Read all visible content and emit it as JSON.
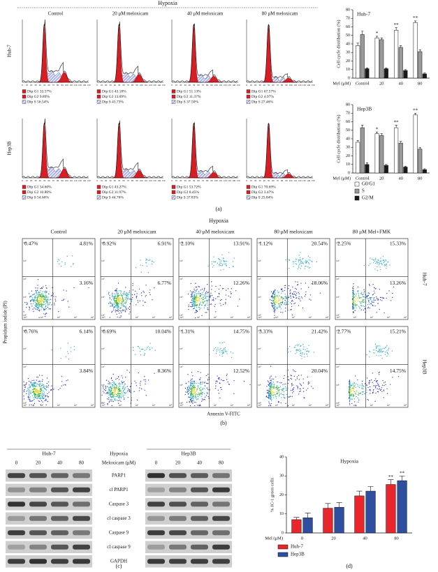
{
  "panel_a": {
    "title": "Hypoxia",
    "conditions": [
      "Control",
      "20 μM meloxicam",
      "40 μM meloxicam",
      "80 μM meloxicam"
    ],
    "cell_lines": [
      "Huh-7",
      "Hep3B"
    ],
    "stats": [
      [
        [
          "Dip G1 33.57%",
          "Dip G2 9.89%",
          "Dip S 56.54%"
        ],
        [
          "Dip G1 43.18%",
          "Dip G2 13.09%",
          "Dip S 43.73%"
        ],
        [
          "Dip G1 51.13%",
          "Dip G2 11.37%",
          "Dip S 37.50%"
        ],
        [
          "Dip G1 67.57%",
          "Dip G2 4.97%",
          "Dip S 27.46%"
        ]
      ],
      [
        [
          "Dip G1 34.60%",
          "Dip G2 10.80%",
          "Dip S 54.60%"
        ],
        [
          "Dip G1 43.27%",
          "Dip G2 11.97%",
          "Dip S 44.76%"
        ],
        [
          "Dip G1 53.72%",
          "Dip G2 8.45%",
          "Dip S 37.83%"
        ],
        [
          "Dip G1 70.69%",
          "Dip G2 3.47%",
          "Dip S 25.84%"
        ]
      ]
    ],
    "hist_ticks": [
      "0",
      "10",
      "20",
      "30",
      "40",
      "50",
      "60",
      "70",
      "80",
      "90",
      "100",
      "110",
      "120",
      "130",
      "140",
      "150"
    ],
    "label": "(a)"
  },
  "panel_b": {
    "title": "Hypoxia",
    "conditions": [
      "Control",
      "20 μM meloxicam",
      "40 μM meloxicam",
      "80 μM meloxicam",
      "80 μM Mel+FMK"
    ],
    "cell_lines": [
      "Huh-7",
      "Hep3B"
    ],
    "quadrants": [
      [
        [
          "0.47%",
          "4.81%",
          "3.16%"
        ],
        [
          "0.92%",
          "6.91%",
          "6.77%"
        ],
        [
          "2.10%",
          "13.91%",
          "12.26%"
        ],
        [
          "1.12%",
          "20.54%",
          "18.06%"
        ],
        [
          "2.25%",
          "15.33%",
          "13.26%"
        ]
      ],
      [
        [
          "0.76%",
          "6.14%",
          "3.84%"
        ],
        [
          "0.69%",
          "10.04%",
          "8.36%"
        ],
        [
          "1.31%",
          "14.75%",
          "12.52%"
        ],
        [
          "3.33%",
          "21.42%",
          "20.04%"
        ],
        [
          "2.77%",
          "15.21%",
          "14.75%"
        ]
      ]
    ],
    "ticks": [
      "10⁰",
      "10¹",
      "10²",
      "10³",
      "10⁴"
    ],
    "y_label": "Propidium iodide (PI)",
    "x_label": "Annexin V-FITC",
    "label": "(b)"
  },
  "panel_c": {
    "cell_lines": [
      "Huh-7",
      "Hep3B"
    ],
    "condition": "Hypoxia",
    "dose_label": "Meloxicam (μM)",
    "lanes": [
      "0",
      "20",
      "40",
      "80"
    ],
    "proteins": [
      "PARP1",
      "cl PARP1",
      "Caspase 3",
      "cl caspase 3",
      "Caspase 9",
      "cl caspase 9",
      "GAPDH"
    ],
    "label": "(c)"
  },
  "panel_d_label": "(d)",
  "chart_data": [
    {
      "type": "bar",
      "title": "Huh-7",
      "y_label": "Cell cycle distribution (%)",
      "x_label": "Mel (μM)",
      "categories": [
        "Control",
        "20",
        "40",
        "80"
      ],
      "ylim": [
        0,
        80
      ],
      "yticks": [
        0,
        10,
        20,
        30,
        40,
        50,
        60,
        70,
        80
      ],
      "series": [
        {
          "color": "#ffffff",
          "values": [
            38,
            47,
            56,
            65
          ],
          "errors": [
            3,
            2,
            3,
            2
          ],
          "significance": [
            null,
            "*",
            "**",
            "**"
          ]
        },
        {
          "color": "#9a9a9a",
          "values": [
            51,
            45,
            36,
            31
          ],
          "errors": [
            4,
            2,
            2,
            2
          ]
        },
        {
          "color": "#1a1a1a",
          "values": [
            11,
            11,
            9,
            5
          ],
          "errors": [
            1,
            1,
            1,
            1
          ]
        }
      ]
    },
    {
      "type": "bar",
      "title": "Hep3B",
      "y_label": "Cell cycle distribution (%)",
      "x_label": "Mel (μM)",
      "categories": [
        "Control",
        "20",
        "40",
        "80"
      ],
      "ylim": [
        0,
        80
      ],
      "yticks": [
        0,
        10,
        20,
        30,
        40,
        50,
        60,
        70,
        80
      ],
      "series": [
        {
          "name": "G0/G1",
          "color": "#ffffff",
          "values": [
            36,
            46,
            53,
            68
          ],
          "errors": [
            2,
            2,
            3,
            2
          ],
          "significance": [
            null,
            "*",
            "**",
            "**"
          ]
        },
        {
          "name": "S",
          "color": "#9a9a9a",
          "values": [
            53,
            44,
            35,
            28
          ],
          "errors": [
            3,
            2,
            2,
            2
          ]
        },
        {
          "name": "G2/M",
          "color": "#1a1a1a",
          "values": [
            10,
            9,
            7,
            4
          ],
          "errors": [
            2,
            1,
            1,
            1
          ]
        }
      ]
    },
    {
      "type": "bar",
      "title": "Hypoxia",
      "y_label": "% JC-1 green cells",
      "x_label": "Mel (μM)",
      "categories": [
        "0",
        "20",
        "40",
        "80"
      ],
      "ylim": [
        0,
        40
      ],
      "yticks": [
        0,
        10,
        20,
        30,
        40
      ],
      "series": [
        {
          "name": "Huh-7",
          "color": "#e8262c",
          "values": [
            7,
            13,
            19.5,
            25.5
          ],
          "errors": [
            1.2,
            2.5,
            2.5,
            2.5
          ],
          "significance": [
            null,
            null,
            null,
            "**"
          ]
        },
        {
          "name": "Hep3B",
          "color": "#2e4f9f",
          "values": [
            8,
            13.5,
            22,
            27.5
          ],
          "errors": [
            2.5,
            2.5,
            2.5,
            2.5
          ],
          "significance": [
            null,
            null,
            null,
            "**"
          ]
        }
      ]
    }
  ]
}
